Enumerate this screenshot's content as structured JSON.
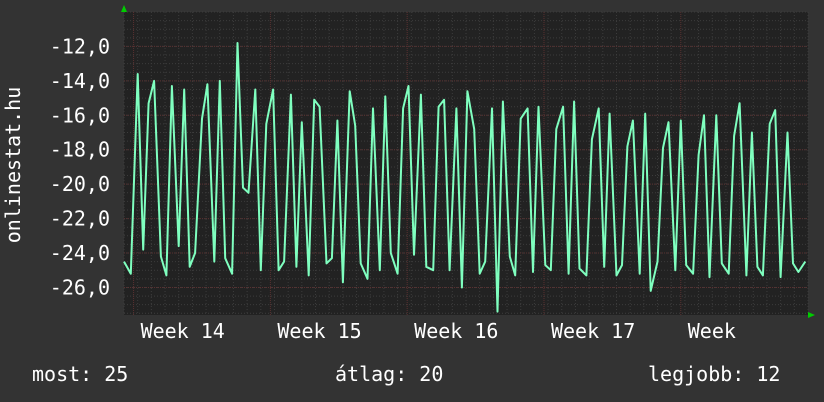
{
  "chart_data": {
    "type": "line",
    "ylabel": "onlinestat.hu",
    "y_ticks": [
      "-12,0",
      "-14,0",
      "-16,0",
      "-18,0",
      "-20,0",
      "-22,0",
      "-24,0",
      "-26,0"
    ],
    "y_tick_values": [
      -12,
      -14,
      -16,
      -18,
      -20,
      -22,
      -24,
      -26
    ],
    "ylim": [
      -27.6,
      -10.0
    ],
    "x_ticks": [
      "Week 14",
      "Week 15",
      "Week 16",
      "Week 17",
      "Week"
    ],
    "xlim": [
      0,
      5
    ],
    "x_tick_values": [
      0.07,
      1.07,
      2.07,
      3.07,
      4.07
    ],
    "grid": true,
    "series": [
      {
        "color": "#7fffbf",
        "x": [
          0.0,
          0.05,
          0.1,
          0.14,
          0.18,
          0.22,
          0.27,
          0.31,
          0.35,
          0.4,
          0.44,
          0.48,
          0.52,
          0.57,
          0.61,
          0.66,
          0.7,
          0.74,
          0.79,
          0.83,
          0.87,
          0.91,
          0.96,
          1.0,
          1.04,
          1.09,
          1.13,
          1.17,
          1.22,
          1.26,
          1.3,
          1.35,
          1.39,
          1.43,
          1.48,
          1.52,
          1.56,
          1.6,
          1.65,
          1.69,
          1.73,
          1.78,
          1.82,
          1.87,
          1.91,
          1.95,
          2.0,
          2.04,
          2.08,
          2.12,
          2.17,
          2.21,
          2.26,
          2.3,
          2.34,
          2.38,
          2.43,
          2.47,
          2.51,
          2.56,
          2.6,
          2.64,
          2.69,
          2.73,
          2.77,
          2.82,
          2.86,
          2.9,
          2.95,
          2.99,
          3.03,
          3.08,
          3.12,
          3.16,
          3.21,
          3.25,
          3.29,
          3.33,
          3.38,
          3.42,
          3.47,
          3.51,
          3.55,
          3.6,
          3.64,
          3.68,
          3.72,
          3.77,
          3.81,
          3.85,
          3.9,
          3.94,
          3.98,
          4.03,
          4.07,
          4.11,
          4.16,
          4.2,
          4.24,
          4.28,
          4.33,
          4.37,
          4.42,
          4.46,
          4.5,
          4.55,
          4.59,
          4.63,
          4.67,
          4.72,
          4.76,
          4.8,
          4.85,
          4.89,
          4.93,
          4.98
        ],
        "y": [
          -24.5,
          -25.2,
          -13.6,
          -23.8,
          -15.3,
          -14.0,
          -24.2,
          -25.3,
          -14.3,
          -23.6,
          -14.5,
          -24.8,
          -24.0,
          -16.2,
          -14.2,
          -24.5,
          -14.0,
          -24.3,
          -25.2,
          -11.8,
          -20.2,
          -20.5,
          -14.5,
          -25.0,
          -16.5,
          -14.5,
          -25.0,
          -24.5,
          -14.8,
          -24.8,
          -16.4,
          -25.3,
          -15.1,
          -15.5,
          -24.6,
          -24.3,
          -16.3,
          -25.7,
          -14.6,
          -16.6,
          -24.6,
          -25.5,
          -15.6,
          -25.0,
          -14.9,
          -24.0,
          -25.2,
          -15.6,
          -14.3,
          -24.1,
          -14.8,
          -24.8,
          -25.0,
          -15.5,
          -15.1,
          -25.0,
          -15.6,
          -26.0,
          -14.6,
          -16.8,
          -25.2,
          -24.5,
          -15.6,
          -27.4,
          -15.2,
          -24.2,
          -25.3,
          -16.2,
          -15.6,
          -25.1,
          -15.5,
          -24.7,
          -25.0,
          -16.8,
          -15.5,
          -25.2,
          -15.2,
          -24.9,
          -25.3,
          -17.4,
          -15.6,
          -24.8,
          -15.9,
          -25.3,
          -24.7,
          -17.8,
          -16.3,
          -25.2,
          -15.9,
          -26.2,
          -24.5,
          -17.9,
          -16.4,
          -25.0,
          -16.3,
          -24.7,
          -25.2,
          -18.3,
          -16.0,
          -25.4,
          -16.0,
          -24.6,
          -25.2,
          -17.2,
          -15.3,
          -25.3,
          -17.0,
          -24.8,
          -25.3,
          -16.5,
          -15.7,
          -25.4,
          -17.0,
          -24.6,
          -25.1,
          -24.5
        ]
      }
    ]
  },
  "footer": {
    "current": "most: 25",
    "average": "átlag: 20",
    "best": "legjobb: 12"
  },
  "colors": {
    "background": "#333333",
    "plot_area": "#222222",
    "grid_minor": "#3c3c3c",
    "grid_major": "#5a3030",
    "line": "#7fffbf",
    "axis_arrow": "#00cc00",
    "text": "#ffffff"
  }
}
